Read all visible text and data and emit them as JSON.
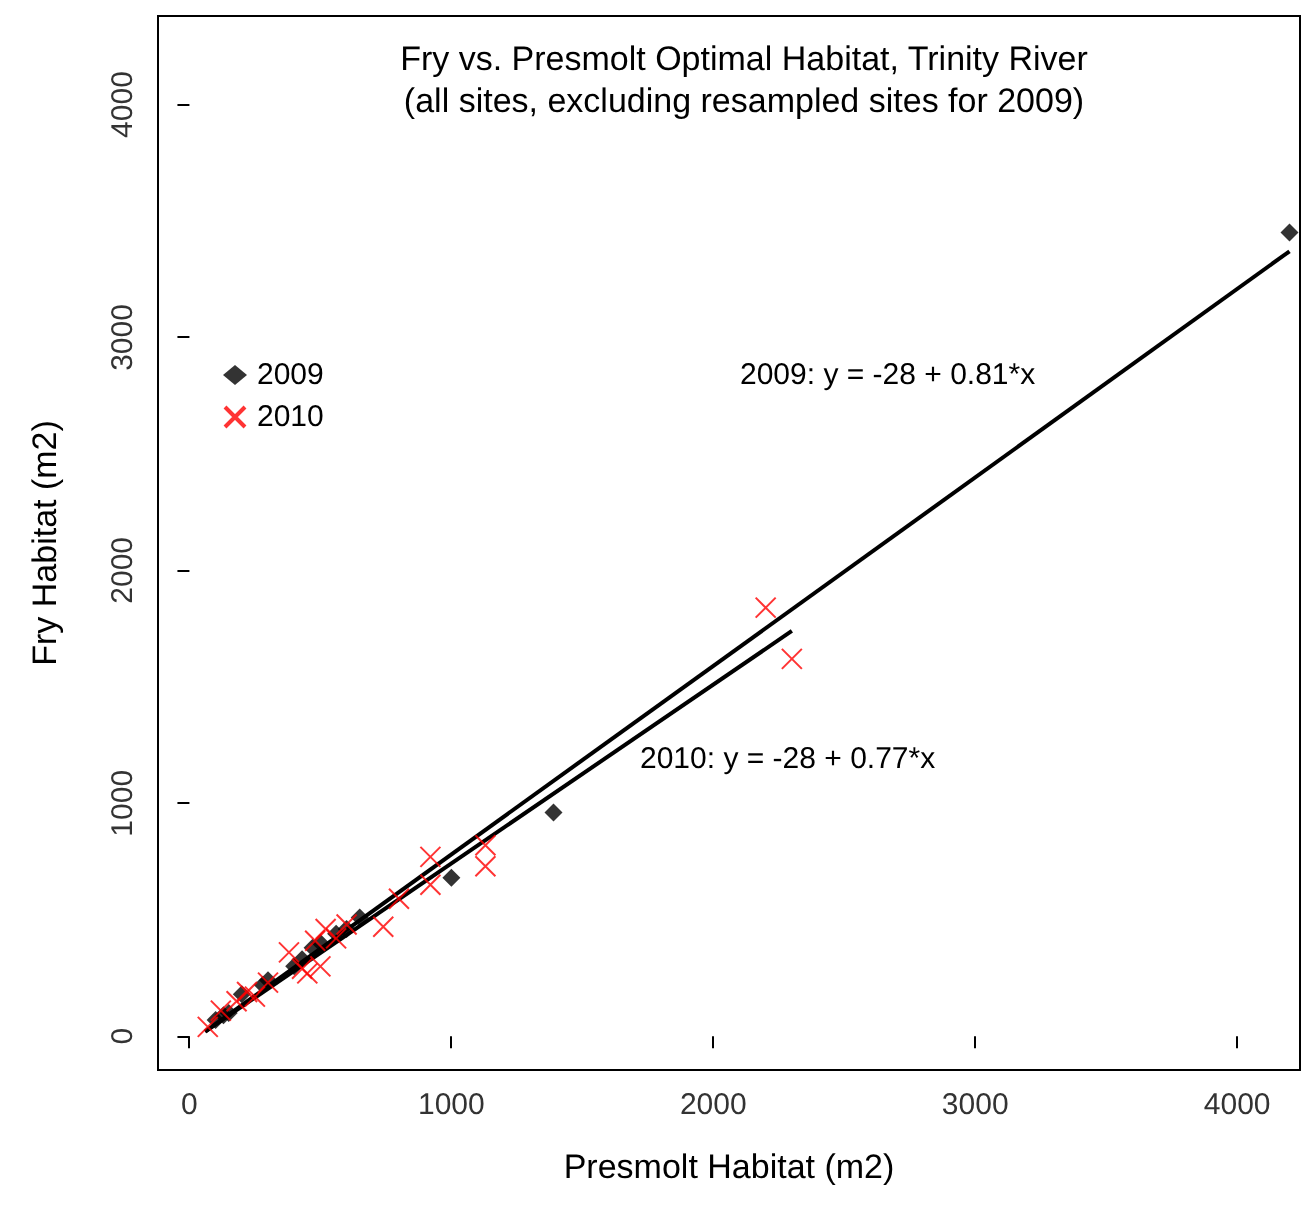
{
  "chart_data": {
    "type": "scatter",
    "title": "Fry vs. Presmolt Optimal Habitat, Trinity River",
    "subtitle": "(all sites, excluding resampled sites for 2009)",
    "xlabel": "Presmolt Habitat (m2)",
    "ylabel": "Fry Habitat (m2)",
    "xlim": [
      -120,
      4240
    ],
    "ylim": [
      -145,
      4380
    ],
    "xticks": [
      0,
      1000,
      2000,
      3000,
      4000
    ],
    "yticks": [
      0,
      1000,
      2000,
      3000,
      4000
    ],
    "grid": false,
    "legend": "top left",
    "annotations": [
      "2009: y = -28 + 0.81*x",
      "2010: y = -28 + 0.77*x"
    ],
    "series": [
      {
        "name": "2009",
        "marker": "diamond",
        "color": "#000000",
        "x": [
          4200,
          1390,
          1000,
          650,
          600,
          560,
          500,
          470,
          430,
          400,
          300,
          280,
          200,
          150,
          130,
          100
        ],
        "values": [
          3450,
          960,
          680,
          510,
          460,
          440,
          400,
          380,
          330,
          300,
          240,
          220,
          180,
          100,
          90,
          70
        ]
      },
      {
        "name": "2010",
        "marker": "cross",
        "color": "#ff0000",
        "x": [
          2200,
          2300,
          1130,
          1130,
          920,
          920,
          740,
          800,
          560,
          520,
          480,
          450,
          430,
          380,
          300,
          250,
          220,
          180,
          120,
          70,
          500,
          600
        ],
        "values": [
          1840,
          1620,
          730,
          820,
          770,
          650,
          470,
          590,
          420,
          460,
          410,
          270,
          290,
          360,
          230,
          170,
          190,
          150,
          110,
          40,
          300,
          480
        ]
      },
      {
        "type": "line",
        "marker": "none",
        "color": "#000000",
        "x": [
          60,
          4200
        ],
        "values": [
          20,
          3370
        ]
      },
      {
        "type": "line",
        "marker": "none",
        "color": "#000000",
        "x": [
          60,
          2300
        ],
        "values": [
          20,
          1740
        ]
      }
    ]
  }
}
